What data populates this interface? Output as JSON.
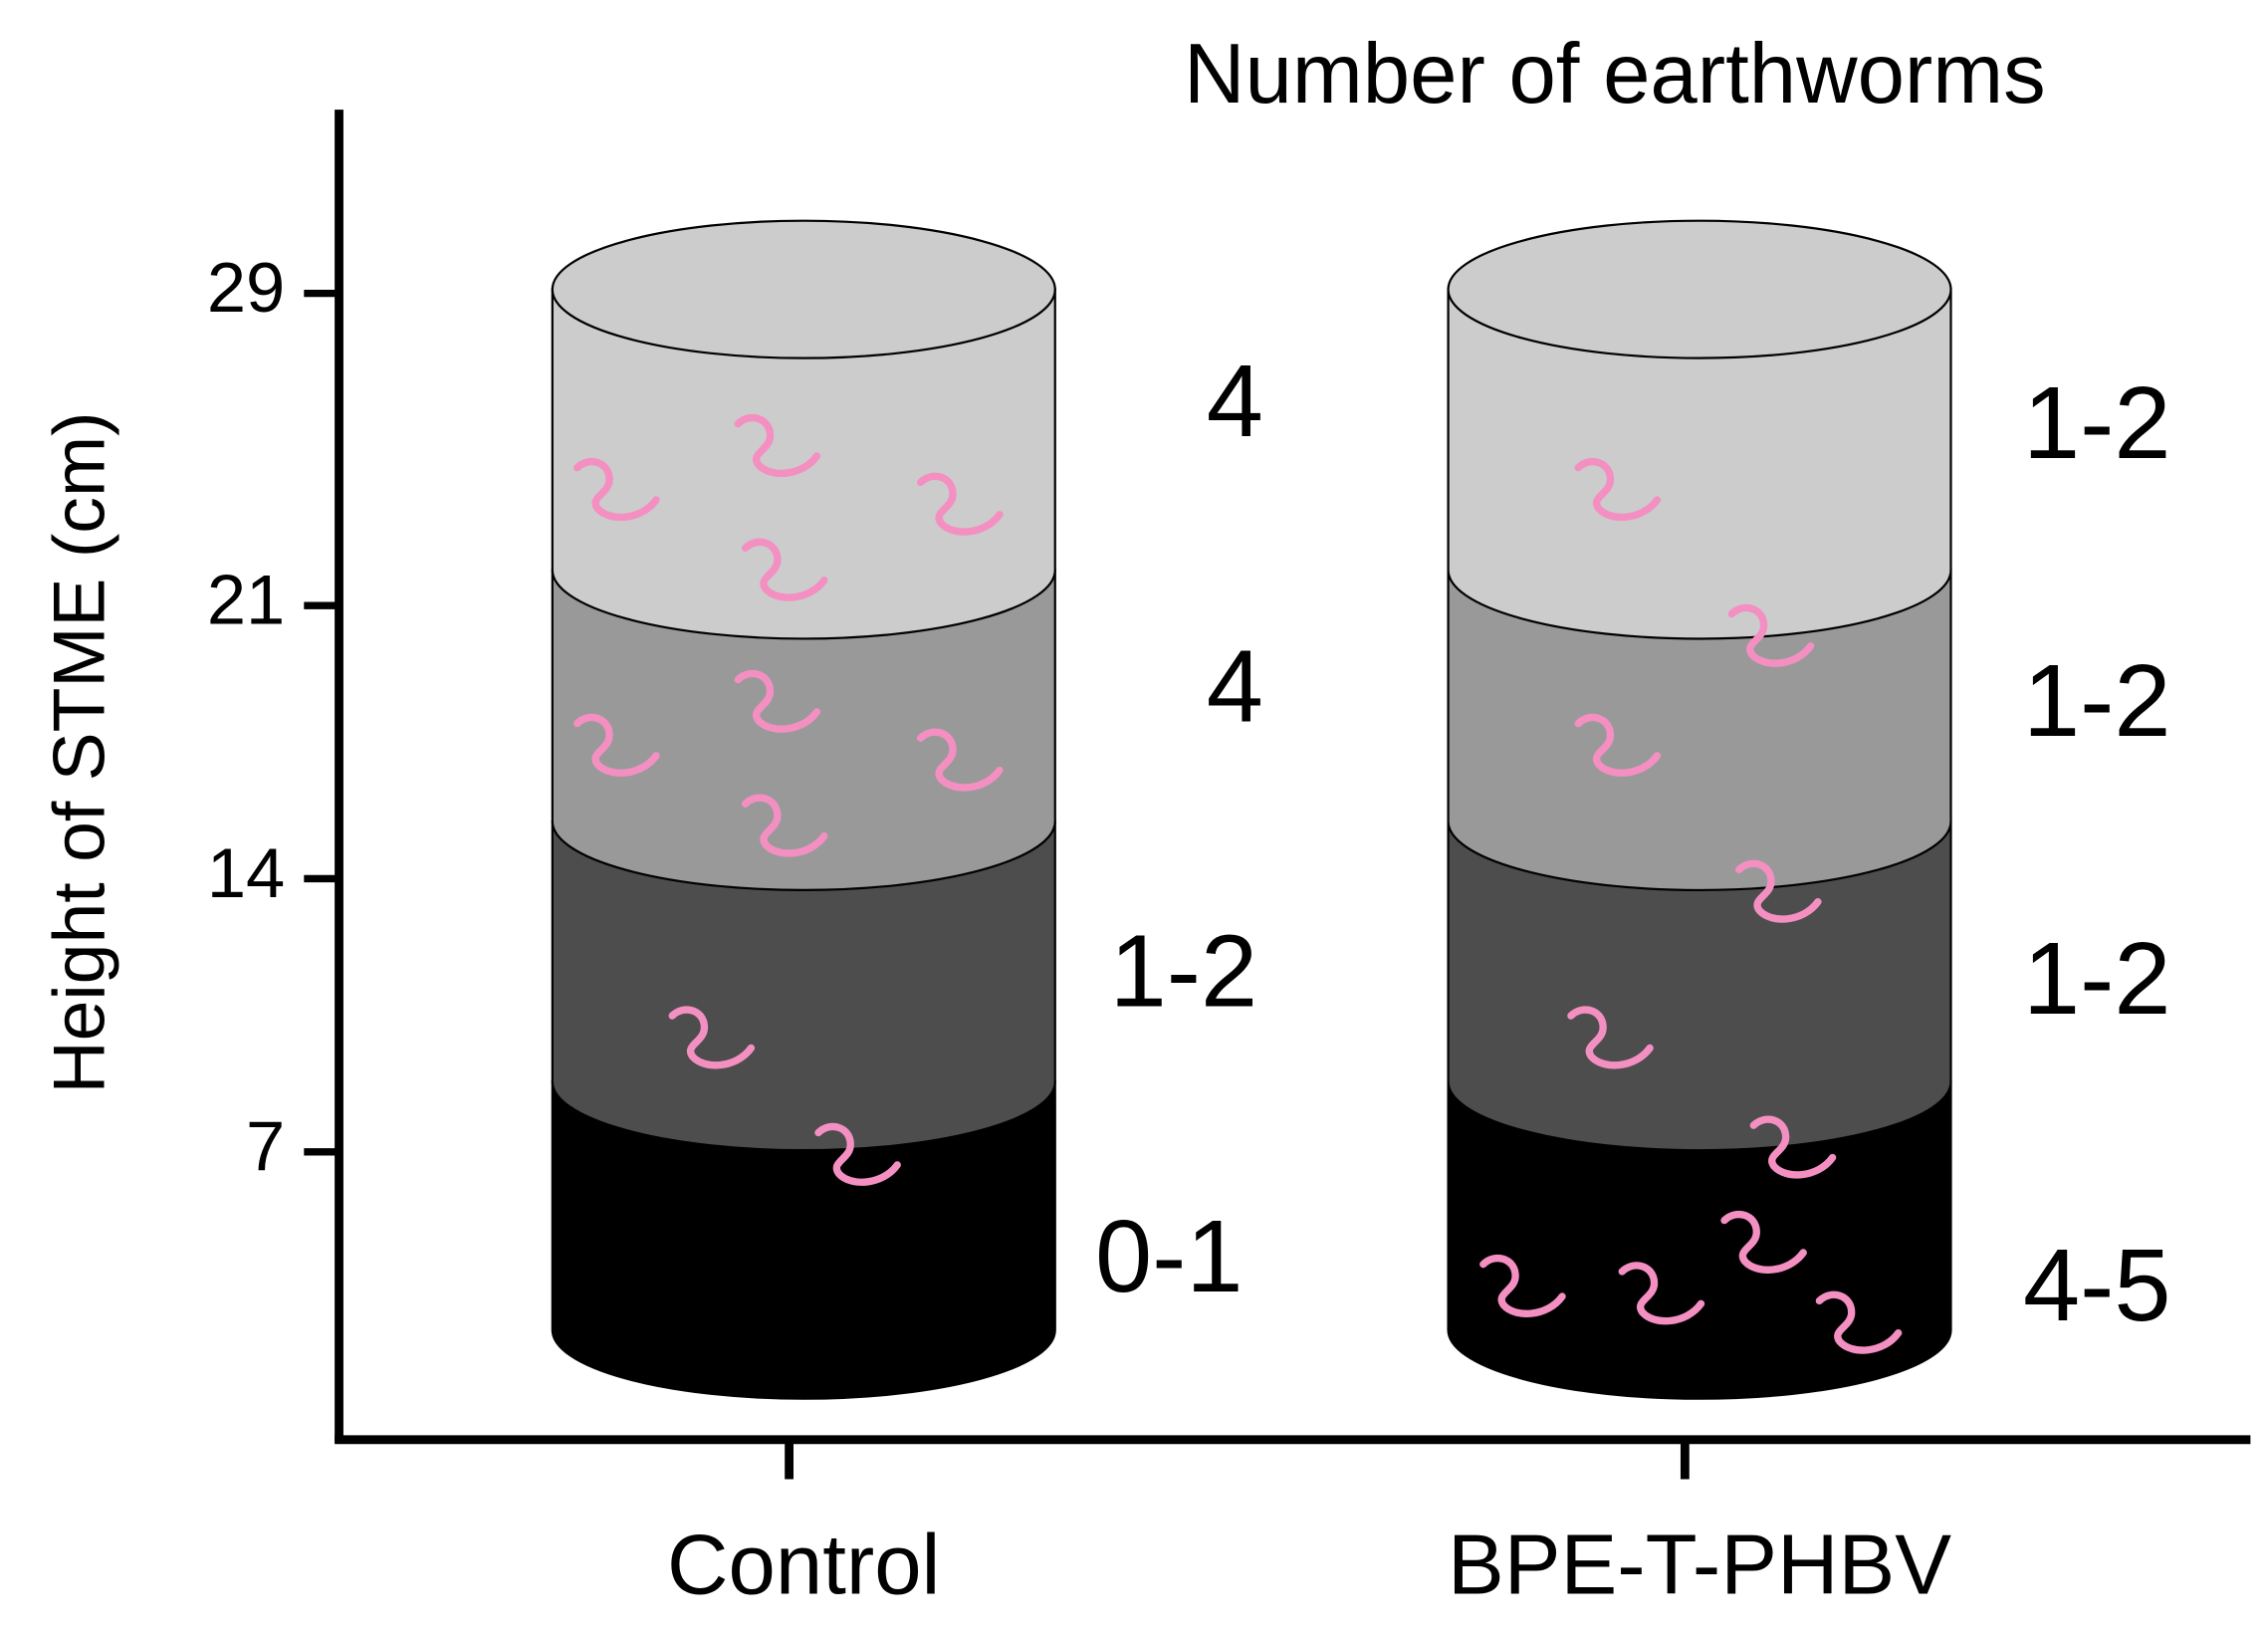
{
  "title": "Number of earthworms",
  "y_axis": {
    "label": "Height of STME (cm)",
    "ticks": [
      7,
      14,
      21,
      29
    ]
  },
  "groups": [
    {
      "label": "Control",
      "layers": [
        "4",
        "4",
        "1-2",
        "0-1"
      ]
    },
    {
      "label": "BPE-T-PHBV",
      "layers": [
        "1-2",
        "1-2",
        "1-2",
        "4-5"
      ]
    }
  ]
}
